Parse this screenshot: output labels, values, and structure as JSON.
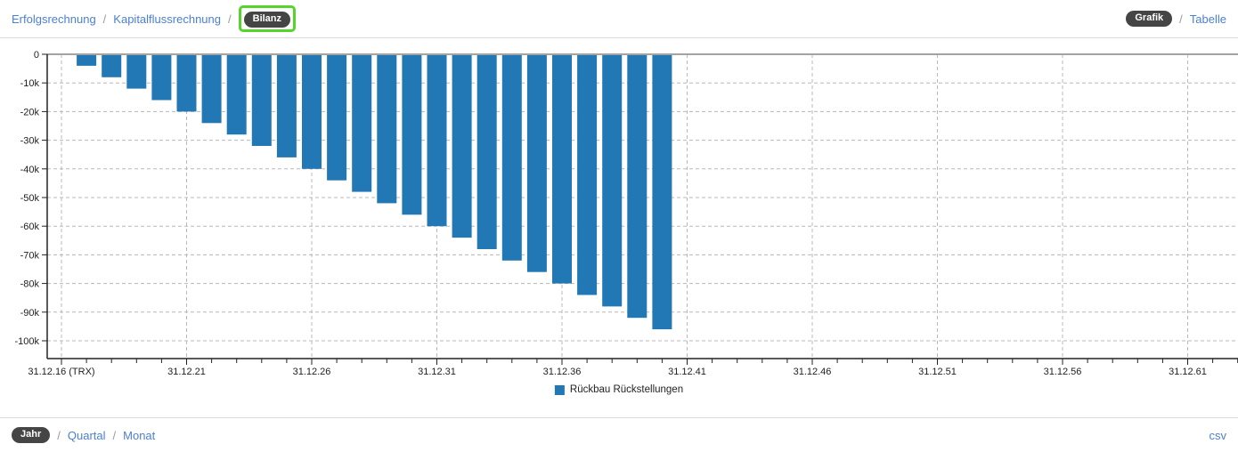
{
  "header": {
    "separator": "/",
    "nav": [
      {
        "label": "Erfolgsrechnung",
        "selected": false
      },
      {
        "label": "Kapitalflussrechnung",
        "selected": false
      },
      {
        "label": "Bilanz",
        "selected": true,
        "highlighted": true
      }
    ],
    "view_toggle": [
      {
        "label": "Grafik",
        "selected": true
      },
      {
        "label": "Tabelle",
        "selected": false
      }
    ]
  },
  "footer": {
    "separator": "/",
    "periods": [
      {
        "label": "Jahr",
        "selected": true
      },
      {
        "label": "Quartal",
        "selected": false
      },
      {
        "label": "Monat",
        "selected": false
      }
    ],
    "csv_label": "csv"
  },
  "colors": {
    "bar": "#2278b5",
    "link_blue": "#4b7fd5",
    "badge_bg": "#454545",
    "highlight_green": "#55d42a",
    "gridline": "#b8b8b8",
    "axis": "#222222"
  },
  "chart_data": {
    "type": "bar",
    "title": "",
    "legend_position": "bottom-center",
    "legend": [
      {
        "label": "Rückbau Rückstellungen",
        "color": "#2278b5"
      }
    ],
    "x_axis": {
      "first_tick": "31.12.16",
      "last_tick": "31.12.63",
      "tick_interval_years": 1,
      "major_labels": [
        "31.12.16 (TRX)",
        "31.12.21",
        "31.12.26",
        "31.12.31",
        "31.12.36",
        "31.12.41",
        "31.12.46",
        "31.12.51",
        "31.12.56",
        "31.12.61"
      ]
    },
    "y_axis": {
      "labels": [
        "0",
        "-10k",
        "-20k",
        "-30k",
        "-40k",
        "-50k",
        "-60k",
        "-70k",
        "-80k",
        "-90k",
        "-100k"
      ],
      "values": [
        0,
        -10000,
        -20000,
        -30000,
        -40000,
        -50000,
        -60000,
        -70000,
        -80000,
        -90000,
        -100000
      ],
      "min": -105000,
      "max": 0,
      "grid": "dashed"
    },
    "series": [
      {
        "name": "Rückbau Rückstellungen",
        "color": "#2278b5",
        "points": [
          {
            "date": "31.12.17",
            "value": -4000
          },
          {
            "date": "31.12.18",
            "value": -8000
          },
          {
            "date": "31.12.19",
            "value": -12000
          },
          {
            "date": "31.12.20",
            "value": -16000
          },
          {
            "date": "31.12.21",
            "value": -20000
          },
          {
            "date": "31.12.22",
            "value": -24000
          },
          {
            "date": "31.12.23",
            "value": -28000
          },
          {
            "date": "31.12.24",
            "value": -32000
          },
          {
            "date": "31.12.25",
            "value": -36000
          },
          {
            "date": "31.12.26",
            "value": -40000
          },
          {
            "date": "31.12.27",
            "value": -44000
          },
          {
            "date": "31.12.28",
            "value": -48000
          },
          {
            "date": "31.12.29",
            "value": -52000
          },
          {
            "date": "31.12.30",
            "value": -56000
          },
          {
            "date": "31.12.31",
            "value": -60000
          },
          {
            "date": "31.12.32",
            "value": -64000
          },
          {
            "date": "31.12.33",
            "value": -68000
          },
          {
            "date": "31.12.34",
            "value": -72000
          },
          {
            "date": "31.12.35",
            "value": -76000
          },
          {
            "date": "31.12.36",
            "value": -80000
          },
          {
            "date": "31.12.37",
            "value": -84000
          },
          {
            "date": "31.12.38",
            "value": -88000
          },
          {
            "date": "31.12.39",
            "value": -92000
          },
          {
            "date": "31.12.40",
            "value": -96000
          }
        ]
      }
    ]
  }
}
